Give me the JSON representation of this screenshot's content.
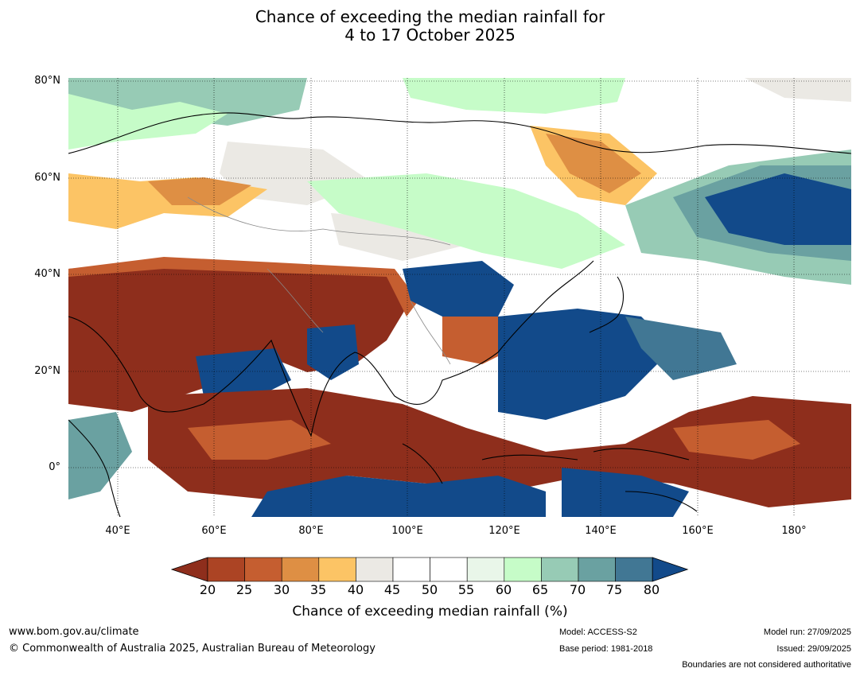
{
  "title": {
    "line1": "Chance of exceeding the median rainfall for",
    "line2": "4 to 17 October 2025"
  },
  "map": {
    "lat_labels": [
      "80°N",
      "60°N",
      "40°N",
      "20°N",
      "0°"
    ],
    "lon_labels": [
      "40°E",
      "60°E",
      "80°E",
      "100°E",
      "120°E",
      "140°E",
      "160°E",
      "180°"
    ]
  },
  "legend": {
    "title": "Chance of exceeding median rainfall (%)",
    "ticks": [
      "20",
      "25",
      "30",
      "35",
      "40",
      "45",
      "50",
      "55",
      "60",
      "65",
      "70",
      "75",
      "80"
    ],
    "colors": [
      "#8e2e1c",
      "#ac4424",
      "#c55e30",
      "#de8f44",
      "#fcc465",
      "#ebe9e4",
      "#ffffff",
      "#ffffff",
      "#e9f6e9",
      "#c6fcc8",
      "#97cbb5",
      "#6aa1a1",
      "#417794",
      "#124a8a"
    ]
  },
  "footer": {
    "website": "www.bom.gov.au/climate",
    "copyright": "© Commonwealth of Australia 2025, Australian Bureau of Meteorology",
    "model": "Model: ACCESS-S2",
    "base_period": "Base period: 1981-2018",
    "model_run": "Model run: 27/09/2025",
    "issued": "Issued: 29/09/2025",
    "disclaimer": "Boundaries are not considered authoritative"
  }
}
